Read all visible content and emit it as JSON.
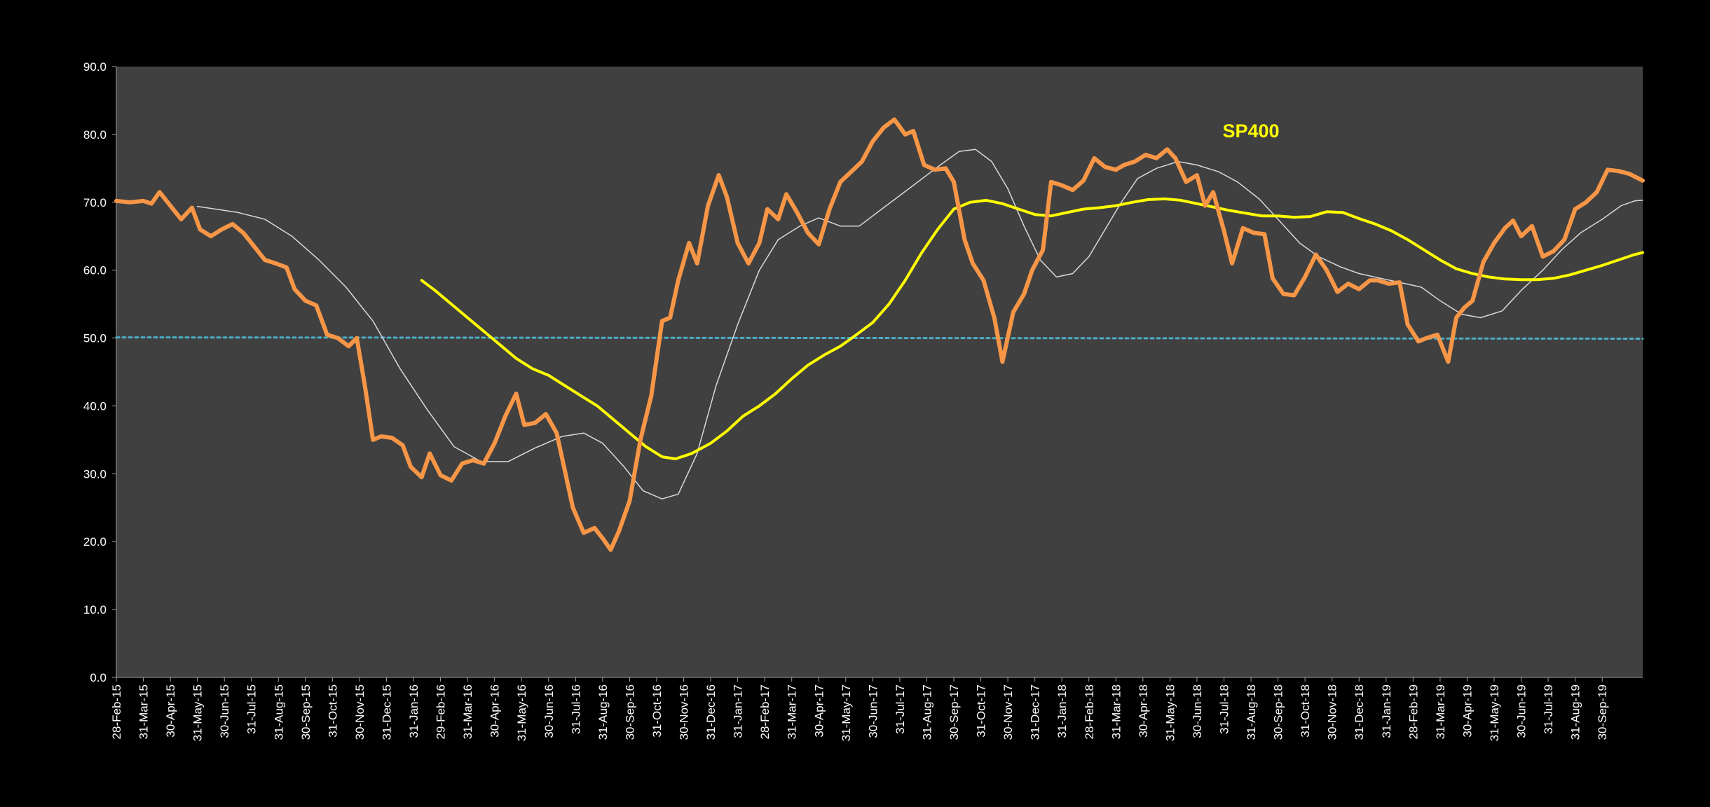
{
  "chart_data": {
    "type": "line",
    "title": "SP400",
    "xlabel": "",
    "ylabel": "",
    "ylim": [
      0,
      90
    ],
    "yticks": [
      "0.0",
      "10.0",
      "20.0",
      "30.0",
      "40.0",
      "50.0",
      "60.0",
      "70.0",
      "80.0",
      "90.0"
    ],
    "grid": false,
    "legend": "none",
    "colors": {
      "page_background": "#000000",
      "plot_background": "#404040",
      "primary": "#f79646",
      "short_average": "#d9d9d9",
      "long_average": "#ffff00",
      "reference": "#4bacc6",
      "title": "#ffff00"
    },
    "x_labels": [
      "28-Feb-15",
      "31-Mar-15",
      "30-Apr-15",
      "31-May-15",
      "30-Jun-15",
      "31-Jul-15",
      "31-Aug-15",
      "30-Sep-15",
      "31-Oct-15",
      "30-Nov-15",
      "31-Dec-15",
      "31-Jan-16",
      "29-Feb-16",
      "31-Mar-16",
      "30-Apr-16",
      "31-May-16",
      "30-Jun-16",
      "31-Jul-16",
      "31-Aug-16",
      "30-Sep-16",
      "31-Oct-16",
      "30-Nov-16",
      "31-Dec-16",
      "31-Jan-17",
      "28-Feb-17",
      "31-Mar-17",
      "30-Apr-17",
      "31-May-17",
      "30-Jun-17",
      "31-Jul-17",
      "31-Aug-17",
      "30-Sep-17",
      "31-Oct-17",
      "30-Nov-17",
      "31-Dec-17",
      "31-Jan-18",
      "28-Feb-18",
      "31-Mar-18",
      "30-Apr-18",
      "31-May-18",
      "30-Jun-18",
      "31-Jul-18",
      "31-Aug-18",
      "30-Sep-18",
      "31-Oct-18",
      "30-Nov-18",
      "31-Dec-18",
      "31-Jan-19",
      "28-Feb-19",
      "31-Mar-19",
      "30-Apr-19",
      "31-May-19",
      "30-Jun-19",
      "31-Jul-19",
      "31-Aug-19",
      "30-Sep-19"
    ],
    "x_range_months": [
      0,
      56.5
    ],
    "series": [
      {
        "key": "primary",
        "points": [
          [
            0,
            70.2
          ],
          [
            0.5,
            70
          ],
          [
            1,
            70.2
          ],
          [
            1.3,
            69.8
          ],
          [
            1.6,
            71.5
          ],
          [
            2,
            69.5
          ],
          [
            2.4,
            67.5
          ],
          [
            2.8,
            69.2
          ],
          [
            3.1,
            66
          ],
          [
            3.5,
            65
          ],
          [
            3.9,
            66
          ],
          [
            4.3,
            66.8
          ],
          [
            4.7,
            65.5
          ],
          [
            5.1,
            63.5
          ],
          [
            5.5,
            61.5
          ],
          [
            5.9,
            61
          ],
          [
            6.3,
            60.4
          ],
          [
            6.6,
            57.2
          ],
          [
            7,
            55.5
          ],
          [
            7.4,
            54.8
          ],
          [
            7.8,
            50.5
          ],
          [
            8.2,
            50
          ],
          [
            8.6,
            48.8
          ],
          [
            8.9,
            50
          ],
          [
            9.2,
            43
          ],
          [
            9.5,
            35
          ],
          [
            9.8,
            35.5
          ],
          [
            10.2,
            35.3
          ],
          [
            10.6,
            34.2
          ],
          [
            10.9,
            31
          ],
          [
            11.3,
            29.5
          ],
          [
            11.6,
            33
          ],
          [
            12,
            29.8
          ],
          [
            12.4,
            29
          ],
          [
            12.8,
            31.5
          ],
          [
            13.2,
            32
          ],
          [
            13.6,
            31.5
          ],
          [
            14,
            34.5
          ],
          [
            14.4,
            38.5
          ],
          [
            14.8,
            41.8
          ],
          [
            15.1,
            37.2
          ],
          [
            15.5,
            37.5
          ],
          [
            15.9,
            38.8
          ],
          [
            16.3,
            36
          ],
          [
            16.6,
            30.5
          ],
          [
            16.9,
            25
          ],
          [
            17.3,
            21.3
          ],
          [
            17.7,
            22
          ],
          [
            18,
            20.5
          ],
          [
            18.3,
            18.8
          ],
          [
            18.6,
            21.5
          ],
          [
            19,
            26
          ],
          [
            19.4,
            35
          ],
          [
            19.8,
            41.5
          ],
          [
            20.2,
            52.5
          ],
          [
            20.5,
            53
          ],
          [
            20.8,
            58.5
          ],
          [
            21.2,
            64
          ],
          [
            21.5,
            61
          ],
          [
            21.9,
            69.5
          ],
          [
            22.3,
            74
          ],
          [
            22.6,
            70.8
          ],
          [
            23,
            64
          ],
          [
            23.4,
            61
          ],
          [
            23.8,
            64
          ],
          [
            24.1,
            69
          ],
          [
            24.5,
            67.5
          ],
          [
            24.8,
            71.2
          ],
          [
            25.2,
            68.5
          ],
          [
            25.6,
            65.5
          ],
          [
            26,
            63.8
          ],
          [
            26.4,
            69
          ],
          [
            26.8,
            73
          ],
          [
            27.2,
            74.5
          ],
          [
            27.6,
            76
          ],
          [
            28,
            79
          ],
          [
            28.4,
            81
          ],
          [
            28.8,
            82.2
          ],
          [
            29.2,
            80
          ],
          [
            29.5,
            80.5
          ],
          [
            29.9,
            75.5
          ],
          [
            30.3,
            74.8
          ],
          [
            30.7,
            75
          ],
          [
            31,
            73
          ],
          [
            31.4,
            64.5
          ],
          [
            31.7,
            61
          ],
          [
            32.1,
            58.5
          ],
          [
            32.5,
            53
          ],
          [
            32.8,
            46.5
          ],
          [
            33.2,
            53.8
          ],
          [
            33.6,
            56.5
          ],
          [
            33.9,
            60
          ],
          [
            34.3,
            63
          ],
          [
            34.6,
            73
          ],
          [
            35,
            72.5
          ],
          [
            35.4,
            71.8
          ],
          [
            35.8,
            73.2
          ],
          [
            36.2,
            76.5
          ],
          [
            36.6,
            75.2
          ],
          [
            37,
            74.8
          ],
          [
            37.3,
            75.5
          ],
          [
            37.7,
            76
          ],
          [
            38.1,
            77
          ],
          [
            38.5,
            76.5
          ],
          [
            38.9,
            77.8
          ],
          [
            39.2,
            76.5
          ],
          [
            39.6,
            73
          ],
          [
            40,
            74
          ],
          [
            40.3,
            69.5
          ],
          [
            40.6,
            71.5
          ],
          [
            41,
            65.8
          ],
          [
            41.3,
            61
          ],
          [
            41.7,
            66.2
          ],
          [
            42.1,
            65.5
          ],
          [
            42.5,
            65.3
          ],
          [
            42.8,
            58.8
          ],
          [
            43.2,
            56.5
          ],
          [
            43.6,
            56.3
          ],
          [
            44,
            59
          ],
          [
            44.4,
            62.3
          ],
          [
            44.8,
            60
          ],
          [
            45.2,
            56.8
          ],
          [
            45.6,
            58
          ],
          [
            46,
            57.2
          ],
          [
            46.4,
            58.5
          ],
          [
            46.7,
            58.5
          ],
          [
            47.1,
            58
          ],
          [
            47.5,
            58.2
          ],
          [
            47.8,
            52
          ],
          [
            48.2,
            49.5
          ],
          [
            48.5,
            50
          ],
          [
            48.9,
            50.5
          ],
          [
            49.3,
            46.5
          ],
          [
            49.6,
            53
          ],
          [
            49.9,
            54.5
          ],
          [
            50.2,
            55.5
          ],
          [
            50.6,
            61.2
          ],
          [
            51,
            64
          ],
          [
            51.4,
            66.2
          ],
          [
            51.7,
            67.3
          ],
          [
            52,
            65
          ],
          [
            52.4,
            66.5
          ],
          [
            52.8,
            62
          ],
          [
            53.2,
            62.8
          ],
          [
            53.6,
            64.5
          ],
          [
            54,
            69
          ],
          [
            54.4,
            70
          ],
          [
            54.8,
            71.5
          ],
          [
            55.2,
            74.8
          ],
          [
            55.6,
            74.6
          ],
          [
            56,
            74.2
          ],
          [
            56.5,
            73.2
          ]
        ]
      },
      {
        "key": "short_average",
        "points": [
          [
            3,
            69.4
          ],
          [
            4.5,
            68.5
          ],
          [
            5.5,
            67.5
          ],
          [
            6.5,
            65
          ],
          [
            7.5,
            61.5
          ],
          [
            8.5,
            57.5
          ],
          [
            9.5,
            52.5
          ],
          [
            10.5,
            45.5
          ],
          [
            11.5,
            39.5
          ],
          [
            12.5,
            34
          ],
          [
            13.5,
            31.8
          ],
          [
            14.5,
            31.8
          ],
          [
            15.5,
            33.8
          ],
          [
            16.5,
            35.5
          ],
          [
            17.3,
            36
          ],
          [
            18,
            34.5
          ],
          [
            18.8,
            31
          ],
          [
            19.5,
            27.5
          ],
          [
            20.2,
            26.3
          ],
          [
            20.8,
            27
          ],
          [
            21.5,
            33
          ],
          [
            22.2,
            43
          ],
          [
            23,
            52
          ],
          [
            23.8,
            60
          ],
          [
            24.5,
            64.5
          ],
          [
            25.3,
            66.5
          ],
          [
            26,
            67.7
          ],
          [
            26.8,
            66.5
          ],
          [
            27.5,
            66.5
          ],
          [
            28.5,
            69.5
          ],
          [
            29.5,
            72.5
          ],
          [
            30.5,
            75.5
          ],
          [
            31.2,
            77.5
          ],
          [
            31.8,
            77.8
          ],
          [
            32.4,
            76
          ],
          [
            33,
            72
          ],
          [
            33.6,
            66.5
          ],
          [
            34.2,
            61.5
          ],
          [
            34.8,
            59
          ],
          [
            35.4,
            59.5
          ],
          [
            36,
            62
          ],
          [
            36.6,
            66
          ],
          [
            37.2,
            70
          ],
          [
            37.8,
            73.5
          ],
          [
            38.5,
            75
          ],
          [
            39.3,
            76
          ],
          [
            40,
            75.5
          ],
          [
            40.8,
            74.5
          ],
          [
            41.5,
            73
          ],
          [
            42.3,
            70.5
          ],
          [
            43,
            67.5
          ],
          [
            43.8,
            64
          ],
          [
            44.5,
            62
          ],
          [
            45.3,
            60.5
          ],
          [
            46,
            59.5
          ],
          [
            46.8,
            58.8
          ],
          [
            47.5,
            58.2
          ],
          [
            48.3,
            57.5
          ],
          [
            49,
            55.5
          ],
          [
            49.8,
            53.5
          ],
          [
            50.5,
            53
          ],
          [
            51.3,
            54
          ],
          [
            52,
            57
          ],
          [
            52.8,
            60
          ],
          [
            53.5,
            63
          ],
          [
            54.2,
            65.5
          ],
          [
            55,
            67.5
          ],
          [
            55.7,
            69.5
          ],
          [
            56.2,
            70.2
          ],
          [
            56.5,
            70.3
          ]
        ]
      },
      {
        "key": "long_average",
        "points": [
          [
            11.3,
            58.5
          ],
          [
            11.8,
            57
          ],
          [
            12.4,
            55
          ],
          [
            13,
            53
          ],
          [
            13.6,
            51
          ],
          [
            14.2,
            49
          ],
          [
            14.8,
            47
          ],
          [
            15.4,
            45.5
          ],
          [
            16,
            44.5
          ],
          [
            16.6,
            43
          ],
          [
            17.2,
            41.5
          ],
          [
            17.8,
            40
          ],
          [
            18.4,
            38
          ],
          [
            19,
            36
          ],
          [
            19.6,
            34
          ],
          [
            20.2,
            32.5
          ],
          [
            20.7,
            32.2
          ],
          [
            21.3,
            33
          ],
          [
            22,
            34.5
          ],
          [
            22.6,
            36.3
          ],
          [
            23.2,
            38.5
          ],
          [
            23.8,
            40
          ],
          [
            24.4,
            41.8
          ],
          [
            25,
            44
          ],
          [
            25.6,
            46
          ],
          [
            26.2,
            47.5
          ],
          [
            26.8,
            48.8
          ],
          [
            27.4,
            50.5
          ],
          [
            28,
            52.3
          ],
          [
            28.6,
            55
          ],
          [
            29.2,
            58.5
          ],
          [
            29.8,
            62.5
          ],
          [
            30.4,
            66
          ],
          [
            31,
            69
          ],
          [
            31.6,
            70
          ],
          [
            32.2,
            70.3
          ],
          [
            32.8,
            69.8
          ],
          [
            33.4,
            69
          ],
          [
            34,
            68.2
          ],
          [
            34.6,
            68
          ],
          [
            35.2,
            68.5
          ],
          [
            35.8,
            69
          ],
          [
            36.4,
            69.2
          ],
          [
            37,
            69.5
          ],
          [
            37.6,
            70
          ],
          [
            38.2,
            70.4
          ],
          [
            38.8,
            70.5
          ],
          [
            39.4,
            70.3
          ],
          [
            40,
            69.8
          ],
          [
            40.6,
            69.3
          ],
          [
            41.2,
            68.8
          ],
          [
            41.8,
            68.4
          ],
          [
            42.4,
            68
          ],
          [
            43,
            68
          ],
          [
            43.6,
            67.8
          ],
          [
            44.2,
            67.9
          ],
          [
            44.8,
            68.6
          ],
          [
            45.4,
            68.5
          ],
          [
            46,
            67.6
          ],
          [
            46.6,
            66.8
          ],
          [
            47.2,
            65.8
          ],
          [
            47.8,
            64.5
          ],
          [
            48.4,
            63
          ],
          [
            49,
            61.5
          ],
          [
            49.6,
            60.2
          ],
          [
            50.2,
            59.5
          ],
          [
            50.8,
            59
          ],
          [
            51.4,
            58.7
          ],
          [
            52,
            58.6
          ],
          [
            52.6,
            58.6
          ],
          [
            53.2,
            58.8
          ],
          [
            53.8,
            59.3
          ],
          [
            54.4,
            60
          ],
          [
            55,
            60.7
          ],
          [
            55.6,
            61.5
          ],
          [
            56.2,
            62.3
          ],
          [
            56.5,
            62.6
          ]
        ]
      },
      {
        "key": "reference",
        "points": [
          [
            0,
            50.1
          ],
          [
            56.5,
            49.9
          ]
        ]
      }
    ]
  }
}
